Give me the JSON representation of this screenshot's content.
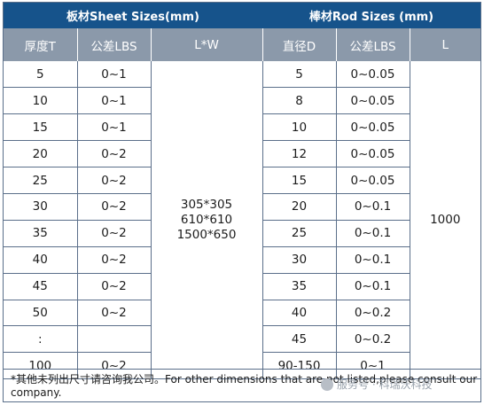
{
  "sheet": {
    "title": "板材Sheet Sizes(mm)",
    "headers": [
      "厚度T",
      "公差LBS",
      "L*W"
    ],
    "thickness": [
      "5",
      "10",
      "15",
      "20",
      "25",
      "30",
      "35",
      "40",
      "45",
      "50",
      ":",
      "100"
    ],
    "tolerance": [
      "0~1",
      "0~1",
      "0~1",
      "0~2",
      "0~2",
      "0~2",
      "0~2",
      "0~2",
      "0~2",
      "0~2",
      "",
      "0~2"
    ],
    "sizes": [
      "305*305",
      "610*610",
      "1500*650"
    ]
  },
  "rod": {
    "title": "棒材Rod Sizes (mm)",
    "headers": [
      "直径D",
      "公差LBS",
      "L"
    ],
    "diameter": [
      "5",
      "8",
      "10",
      "12",
      "15",
      "20",
      "25",
      "30",
      "35",
      "40",
      "45",
      "90-150"
    ],
    "tolerance": [
      "0~0.05",
      "0~0.05",
      "0~0.05",
      "0~0.05",
      "0~0.05",
      "0~0.1",
      "0~0.1",
      "0~0.1",
      "0~0.1",
      "0~0.2",
      "0~0.2",
      "0~1"
    ],
    "length": "1000"
  },
  "note": "*其他未列出尺寸请咨询我公司。For other dimensions that are not listed,please consult our company.",
  "watermark": "服务号 · 科瑞沃科技"
}
